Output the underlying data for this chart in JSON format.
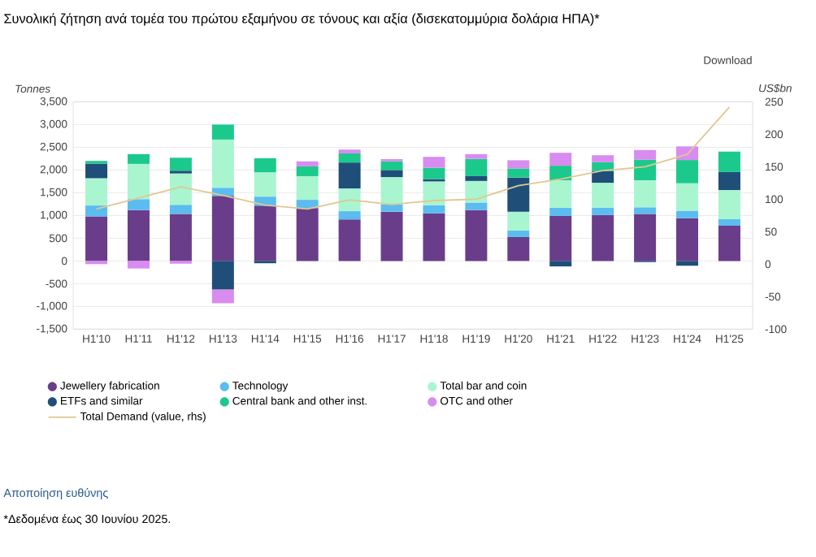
{
  "chart_data": {
    "type": "bar",
    "stacked": true,
    "title": "Συνολική ζήτηση ανά τομέα του πρώτου εξαμήνου σε τόνους και αξία (δισεκατομμύρια δολάρια ΗΠΑ)*",
    "ylabel": "Tonnes",
    "y2label": "US$bn",
    "categories": [
      "H1'10",
      "H1'11",
      "H1'12",
      "H1'13",
      "H1'14",
      "H1'15",
      "H1'16",
      "H1'17",
      "H1'18",
      "H1'19",
      "H1'20",
      "H1'21",
      "H1'22",
      "H1'23",
      "H1'24",
      "H1'25"
    ],
    "series": [
      {
        "name": "Jewellery fabrication",
        "color": "#6a3d8a",
        "values": [
          980,
          1120,
          1035,
          1430,
          1215,
          1165,
          915,
          1085,
          1045,
          1120,
          525,
          990,
          1010,
          1035,
          940,
          775
        ]
      },
      {
        "name": "Technology",
        "color": "#5bbcf0",
        "values": [
          240,
          240,
          200,
          180,
          200,
          180,
          180,
          165,
          180,
          165,
          145,
          180,
          165,
          145,
          165,
          145
        ]
      },
      {
        "name": "Total bar and coin",
        "color": "#a8f5d0",
        "values": [
          600,
          775,
          690,
          1060,
          535,
          520,
          500,
          595,
          525,
          475,
          415,
          605,
          545,
          595,
          605,
          640
        ]
      },
      {
        "name": "ETFs and similar",
        "color": "#1f4e79",
        "values": [
          320,
          null,
          60,
          -630,
          -50,
          null,
          570,
          155,
          50,
          105,
          750,
          -120,
          260,
          -25,
          -105,
          395
        ]
      },
      {
        "name": "Central bank and other inst.",
        "color": "#1cc98c",
        "values": [
          60,
          215,
          285,
          330,
          310,
          215,
          200,
          190,
          250,
          380,
          200,
          320,
          190,
          450,
          510,
          450
        ]
      },
      {
        "name": "OTC and other",
        "color": "#d88cf0",
        "values": [
          -70,
          -165,
          -60,
          -300,
          null,
          110,
          85,
          50,
          240,
          105,
          180,
          285,
          155,
          215,
          300,
          null
        ]
      },
      {
        "name": "Total Demand (value, rhs)",
        "type": "line",
        "axis": "y2",
        "color": "#e0c890",
        "values": [
          85,
          102,
          119,
          106,
          91,
          85,
          99,
          92,
          98,
          100,
          121,
          131,
          144,
          150,
          169,
          242
        ]
      }
    ],
    "ylim": [
      -1500,
      3500
    ],
    "yticks": [
      {
        "value": -1500,
        "label": "-1,500"
      },
      {
        "value": -1000,
        "label": "-1,000"
      },
      -500,
      0,
      500,
      {
        "value": 1000,
        "label": "1,000"
      },
      {
        "value": 1500,
        "label": "1,500"
      },
      {
        "value": 2000,
        "label": "2,000"
      },
      {
        "value": 2500,
        "label": "2,500"
      },
      {
        "value": 3000,
        "label": "3,000"
      },
      {
        "value": 3500,
        "label": "3,500"
      }
    ],
    "y2lim": [
      -100,
      250
    ],
    "y2ticks": [
      -100,
      -50,
      0,
      50,
      100,
      150,
      200,
      250
    ],
    "grid": "y",
    "legend": "bottom",
    "annotations": [
      "Download",
      "Αποποίηση ευθύνης",
      "*Δεδομένα έως 30 Ιουνίου 2025."
    ]
  }
}
